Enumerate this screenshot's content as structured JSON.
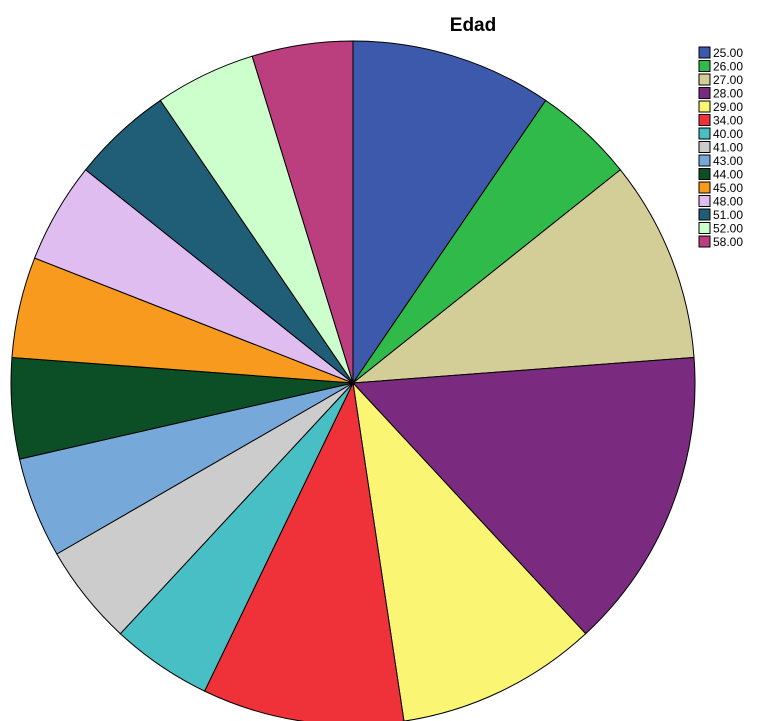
{
  "chart_data": {
    "type": "pie",
    "title": "Edad",
    "legend_position": "right",
    "categories": [
      "25.00",
      "26.00",
      "27.00",
      "28.00",
      "29.00",
      "34.00",
      "40.00",
      "41.00",
      "43.00",
      "44.00",
      "45.00",
      "48.00",
      "51.00",
      "52.00",
      "58.00"
    ],
    "values": [
      2,
      1,
      2,
      3,
      2,
      2,
      1,
      1,
      1,
      1,
      1,
      1,
      1,
      1,
      1
    ],
    "colors": [
      "#3d59ab",
      "#2fba4a",
      "#d3cd98",
      "#7a2a7f",
      "#fbf574",
      "#ef3139",
      "#48bfc4",
      "#cccccc",
      "#76a8d9",
      "#0c4f26",
      "#f79a1e",
      "#dfbdf1",
      "#1f5e76",
      "#ccffcc",
      "#bb3f7f"
    ]
  }
}
